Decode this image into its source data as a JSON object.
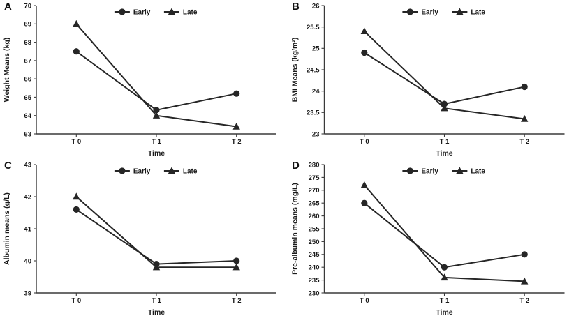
{
  "colors": {
    "line": "#262626",
    "axis": "#3a3a3a",
    "text": "#1a1a1a",
    "background": "#ffffff"
  },
  "chart_data": [
    {
      "panel": "A",
      "type": "line",
      "title": "",
      "xlabel": "Time",
      "ylabel": "Weight Means (kg)",
      "categories": [
        "T 0",
        "T 1",
        "T 2"
      ],
      "ylim": [
        63,
        70
      ],
      "ytick_step": 1,
      "grid": false,
      "legend_position": "top-center",
      "series": [
        {
          "name": "Early",
          "marker": "circle",
          "values": [
            67.5,
            64.3,
            65.2
          ]
        },
        {
          "name": "Late",
          "marker": "triangle",
          "values": [
            69.0,
            64.0,
            63.4
          ]
        }
      ]
    },
    {
      "panel": "B",
      "type": "line",
      "title": "",
      "xlabel": "Time",
      "ylabel": "BMI Means (kg/m²)",
      "categories": [
        "T 0",
        "T 1",
        "T 2"
      ],
      "ylim": [
        23,
        26
      ],
      "ytick_step": 0.5,
      "grid": false,
      "legend_position": "top-center",
      "series": [
        {
          "name": "Early",
          "marker": "circle",
          "values": [
            24.9,
            23.7,
            24.1
          ]
        },
        {
          "name": "Late",
          "marker": "triangle",
          "values": [
            25.4,
            23.6,
            23.35
          ]
        }
      ]
    },
    {
      "panel": "C",
      "type": "line",
      "title": "",
      "xlabel": "Time",
      "ylabel": "Albumin means (g/L)",
      "categories": [
        "T 0",
        "T 1",
        "T 2"
      ],
      "ylim": [
        39,
        43
      ],
      "ytick_step": 1,
      "grid": false,
      "legend_position": "top-center",
      "series": [
        {
          "name": "Early",
          "marker": "circle",
          "values": [
            41.6,
            39.9,
            40.0
          ]
        },
        {
          "name": "Late",
          "marker": "triangle",
          "values": [
            42.0,
            39.8,
            39.8
          ]
        }
      ]
    },
    {
      "panel": "D",
      "type": "line",
      "title": "",
      "xlabel": "Time",
      "ylabel": "Pre-albumin means (mg/L)",
      "categories": [
        "T 0",
        "T 1",
        "T 2"
      ],
      "ylim": [
        230,
        280
      ],
      "ytick_step": 5,
      "grid": false,
      "legend_position": "top-center",
      "series": [
        {
          "name": "Early",
          "marker": "circle",
          "values": [
            265,
            240,
            245
          ]
        },
        {
          "name": "Late",
          "marker": "triangle",
          "values": [
            272,
            236,
            234.5
          ]
        }
      ]
    }
  ]
}
